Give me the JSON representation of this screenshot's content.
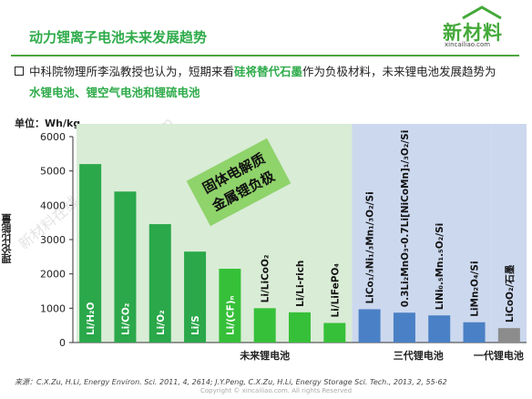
{
  "header": {
    "title": "动力锂离子电池未来发展趋势",
    "logo_text": "新材料",
    "logo_url": "xincailiao.com"
  },
  "bullet": {
    "part1": "中科院物理所李泓教授也认为，短期来看",
    "highlight1": "硅将替代石墨",
    "part2": "作为负极材料，未来锂电池发展趋势为",
    "highlight2": "水锂电池、锂空气电池和锂硫电池"
  },
  "annotation": {
    "line1": "固体电解质",
    "line2": "金属锂负极"
  },
  "watermark": "新材料在线® xincailiao.com",
  "source": "来源：C.X.Zu, H.Li, Energy Environ. Sci. 2011, 4, 2614; J.Y.Peng, C.X.Zu, H.Li, Energy Storage Sci. Tech., 2013, 2, 55-62",
  "copyright": "Copyright © xincailiao.com. All rights Reserved",
  "chart_data": {
    "type": "bar",
    "unit_label": "单位：Wh/kg",
    "ylabel": "理论比能量",
    "ylim": [
      0,
      6000
    ],
    "yticks": [
      0,
      1000,
      2000,
      3000,
      4000,
      5000,
      6000
    ],
    "groups": [
      {
        "label": "未来锂电池",
        "start": 0,
        "end": 8,
        "bg": "#d9ecd6"
      },
      {
        "label": "三代锂电池",
        "start": 8,
        "end": 12,
        "bg": "#ccd8ee"
      },
      {
        "label": "一代锂电池",
        "start": 12,
        "end": 13,
        "bg": "#ccd8ee"
      }
    ],
    "bars": [
      {
        "label": "Li/H₂O",
        "value": 5200,
        "color": "#2aa84a"
      },
      {
        "label": "Li/CO₂",
        "value": 4400,
        "color": "#2aa84a"
      },
      {
        "label": "Li/O₂",
        "value": 3450,
        "color": "#2aa84a"
      },
      {
        "label": "Li/S",
        "value": 2650,
        "color": "#2aa84a"
      },
      {
        "label": "Li/(CF)ₙ",
        "value": 2150,
        "color": "#36c039"
      },
      {
        "label": "Li/LiCoO₂",
        "value": 1000,
        "color": "#36c039"
      },
      {
        "label": "Li/Li-rich",
        "value": 880,
        "color": "#36c039"
      },
      {
        "label": "Li/LiFePO₄",
        "value": 570,
        "color": "#36c039"
      },
      {
        "label": "LiCo₁/₃Ni₁/₃Mn₁/₃O₂/Si",
        "value": 970,
        "color": "#4a80c5"
      },
      {
        "label": "0.3Li₂MnO₃-0.7Li[NiCoMn]₁/₃O₂/Si",
        "value": 870,
        "color": "#4a80c5"
      },
      {
        "label": "LiNi₀.₅Mn₁.₅O₂/Si",
        "value": 790,
        "color": "#4a80c5"
      },
      {
        "label": "LiMn₂O₄/Si",
        "value": 590,
        "color": "#4a80c5"
      },
      {
        "label": "LiCoO₂/石墨",
        "value": 420,
        "color": "#8c8c8c"
      }
    ],
    "grid": false
  }
}
